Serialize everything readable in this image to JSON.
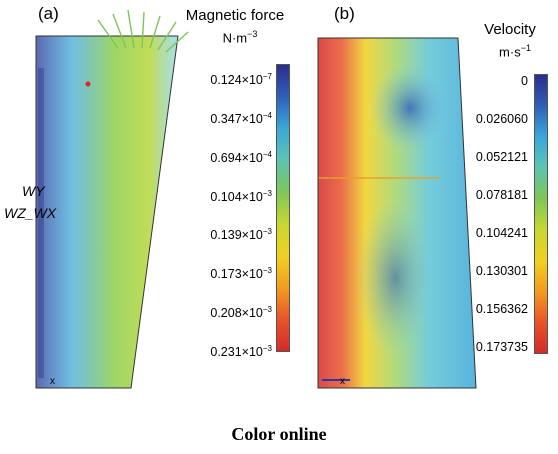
{
  "figure": {
    "caption": "Color online",
    "panels": [
      {
        "label": "(a)",
        "colorbar_title": "Magnetic force",
        "colorbar_unit_base": "N·m",
        "colorbar_unit_exp": "−3",
        "ticks": [
          {
            "mant": "0.124",
            "exp": "−7"
          },
          {
            "mant": "0.347",
            "exp": "−4"
          },
          {
            "mant": "0.694",
            "exp": "−4"
          },
          {
            "mant": "0.104",
            "exp": "−3"
          },
          {
            "mant": "0.139",
            "exp": "−3"
          },
          {
            "mant": "0.173",
            "exp": "−3"
          },
          {
            "mant": "0.208",
            "exp": "−3"
          },
          {
            "mant": "0.231",
            "exp": "−3"
          }
        ],
        "side_labels": [
          "WY",
          "WZ_WX"
        ],
        "colors": [
          "#2b2e8c",
          "#2f5fb8",
          "#3aa6d8",
          "#5cc4b4",
          "#7cc65a",
          "#c8d832",
          "#f0d020",
          "#f29b1e",
          "#e8532a",
          "#d42a2a"
        ]
      },
      {
        "label": "(b)",
        "colorbar_title": "Velocity",
        "colorbar_unit_base": "m·s",
        "colorbar_unit_exp": "−1",
        "ticks": [
          "0",
          "0.026060",
          "0.052121",
          "0.078181",
          "0.104241",
          "0.130301",
          "0.156362",
          "0.173735"
        ],
        "colors": [
          "#2b2e8c",
          "#2f5fb8",
          "#3aa6d8",
          "#5cc4b4",
          "#7cc65a",
          "#c8d832",
          "#f0d020",
          "#f29b1e",
          "#e8532a",
          "#d42a2a"
        ]
      }
    ]
  }
}
